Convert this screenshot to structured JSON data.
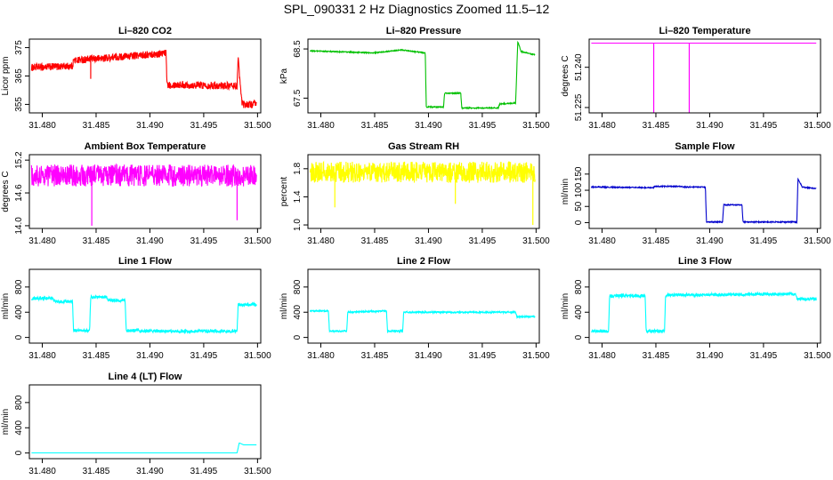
{
  "figure": {
    "title": "SPL_090331  2 Hz Diagnostics Zoomed 11.5–12"
  },
  "chart_data": [
    {
      "type": "line",
      "title": "Li–820 CO2",
      "ylabel": "Licor ppm",
      "color": "#ff0000",
      "xlim": [
        31.4788,
        31.5003
      ],
      "ylim": [
        352,
        378
      ],
      "xticks": [
        "31.480",
        "31.485",
        "31.490",
        "31.495",
        "31.500"
      ],
      "yticks": [
        "355",
        "365",
        "375"
      ],
      "noise": 1.3,
      "x": [
        31.479,
        31.4828,
        31.4829,
        31.4915,
        31.4916,
        31.4981,
        31.4982,
        31.4985,
        31.4986,
        31.4999
      ],
      "y": [
        368,
        368.5,
        370.5,
        373,
        362,
        361.5,
        371,
        357,
        355,
        355
      ],
      "spikes": [
        [
          31.4845,
          364,
          370
        ]
      ]
    },
    {
      "type": "line",
      "title": "Li–820 Pressure",
      "ylabel": "kPa",
      "color": "#00c000",
      "xlim": [
        31.4788,
        31.5003
      ],
      "ylim": [
        67.2,
        68.7
      ],
      "xticks": [
        "31.480",
        "31.485",
        "31.490",
        "31.495",
        "31.500"
      ],
      "yticks": [
        "67.5",
        "68.5"
      ],
      "noise": 0.01,
      "x": [
        31.479,
        31.485,
        31.4875,
        31.4897,
        31.4898,
        31.4914,
        31.4915,
        31.493,
        31.4931,
        31.4965,
        31.4966,
        31.4981,
        31.4983,
        31.4986,
        31.4999
      ],
      "y": [
        68.46,
        68.42,
        68.48,
        68.42,
        67.32,
        67.32,
        67.6,
        67.6,
        67.3,
        67.3,
        67.38,
        67.4,
        68.65,
        68.45,
        68.38
      ],
      "spikes": []
    },
    {
      "type": "line",
      "title": "Li–820 Temperature",
      "ylabel": "degrees C",
      "color": "#ff00ff",
      "xlim": [
        31.4788,
        31.5003
      ],
      "ylim": [
        51.223,
        51.2505
      ],
      "xticks": [
        "31.480",
        "31.485",
        "31.490",
        "31.495",
        "31.500"
      ],
      "yticks": [
        "51.225",
        "51.240"
      ],
      "noise": 0,
      "x": [
        31.479,
        31.4999
      ],
      "y": [
        51.249,
        51.249
      ],
      "spikes": [
        [
          31.4848,
          51.223,
          51.249
        ],
        [
          31.4881,
          51.223,
          51.249
        ]
      ]
    },
    {
      "type": "line",
      "title": "Ambient Box Temperature",
      "ylabel": "degrees C",
      "color": "#ff00ff",
      "xlim": [
        31.4788,
        31.5003
      ],
      "ylim": [
        13.95,
        15.3
      ],
      "xticks": [
        "31.480",
        "31.485",
        "31.490",
        "31.495",
        "31.500"
      ],
      "yticks": [
        "14.0",
        "14.6",
        "15.2"
      ],
      "noise": 0.2,
      "x": [
        31.479,
        31.4999
      ],
      "y": [
        14.92,
        14.92
      ],
      "spikes": [
        [
          31.4846,
          14.0,
          14.9
        ],
        [
          31.4981,
          14.1,
          14.9
        ]
      ]
    },
    {
      "type": "line",
      "title": "Gas Stream RH",
      "ylabel": "percent",
      "color": "#ffff00",
      "xlim": [
        31.4788,
        31.5003
      ],
      "ylim": [
        0.95,
        2.0
      ],
      "xticks": [
        "31.480",
        "31.485",
        "31.490",
        "31.495",
        "31.500"
      ],
      "yticks": [
        "1.0",
        "1.4",
        "1.8"
      ],
      "noise": 0.15,
      "x": [
        31.479,
        31.4999
      ],
      "y": [
        1.75,
        1.75
      ],
      "spikes": [
        [
          31.4813,
          1.25,
          1.75
        ],
        [
          31.4925,
          1.3,
          1.75
        ],
        [
          31.4997,
          1.0,
          1.75
        ]
      ]
    },
    {
      "type": "line",
      "title": "Sample Flow",
      "ylabel": "ml/min",
      "color": "#0000cc",
      "xlim": [
        31.4788,
        31.5003
      ],
      "ylim": [
        -18,
        210
      ],
      "xticks": [
        "31.480",
        "31.485",
        "31.490",
        "31.495",
        "31.500"
      ],
      "yticks": [
        "0",
        "50",
        "100",
        "150"
      ],
      "noise": 1.5,
      "x": [
        31.479,
        31.4848,
        31.4849,
        31.4874,
        31.4875,
        31.4896,
        31.4897,
        31.4912,
        31.4913,
        31.493,
        31.4931,
        31.4981,
        31.4982,
        31.4986,
        31.4999
      ],
      "y": [
        110,
        108,
        112,
        112,
        110,
        110,
        2,
        2,
        55,
        55,
        2,
        2,
        135,
        110,
        105
      ],
      "spikes": []
    },
    {
      "type": "line",
      "title": "Line 1 Flow",
      "ylabel": "ml/min",
      "color": "#00ffff",
      "xlim": [
        31.4788,
        31.5003
      ],
      "ylim": [
        -90,
        1080
      ],
      "xticks": [
        "31.480",
        "31.485",
        "31.490",
        "31.495",
        "31.500"
      ],
      "yticks": [
        "0",
        "400",
        "800"
      ],
      "noise": 25,
      "x": [
        31.479,
        31.481,
        31.4811,
        31.4828,
        31.4829,
        31.4844,
        31.4845,
        31.486,
        31.4861,
        31.4877,
        31.4878,
        31.489,
        31.4891,
        31.4981,
        31.4982,
        31.4999
      ],
      "y": [
        620,
        620,
        570,
        570,
        110,
        110,
        640,
        640,
        590,
        590,
        110,
        110,
        100,
        100,
        520,
        520
      ],
      "spikes": []
    },
    {
      "type": "line",
      "title": "Line 2 Flow",
      "ylabel": "ml/min",
      "color": "#00ffff",
      "xlim": [
        31.4788,
        31.5003
      ],
      "ylim": [
        -90,
        1080
      ],
      "xticks": [
        "31.480",
        "31.485",
        "31.490",
        "31.495",
        "31.500"
      ],
      "yticks": [
        "0",
        "400",
        "800"
      ],
      "noise": 12,
      "x": [
        31.479,
        31.4807,
        31.4808,
        31.4824,
        31.4825,
        31.4861,
        31.4862,
        31.4876,
        31.4877,
        31.4981,
        31.4982,
        31.4999
      ],
      "y": [
        420,
        420,
        100,
        100,
        400,
        420,
        100,
        100,
        400,
        400,
        330,
        330
      ],
      "spikes": []
    },
    {
      "type": "line",
      "title": "Line 3 Flow",
      "ylabel": "ml/min",
      "color": "#00ffff",
      "xlim": [
        31.4788,
        31.5003
      ],
      "ylim": [
        -90,
        1080
      ],
      "xticks": [
        "31.480",
        "31.485",
        "31.490",
        "31.495",
        "31.500"
      ],
      "yticks": [
        "0",
        "400",
        "800"
      ],
      "noise": 25,
      "x": [
        31.479,
        31.4806,
        31.4807,
        31.484,
        31.4841,
        31.4858,
        31.4859,
        31.498,
        31.4981,
        31.4999
      ],
      "y": [
        100,
        100,
        660,
        660,
        100,
        100,
        670,
        690,
        610,
        610
      ],
      "spikes": []
    },
    {
      "type": "line",
      "title": "Line 4 (LT) Flow",
      "ylabel": "ml/min",
      "color": "#00ffff",
      "xlim": [
        31.4788,
        31.5003
      ],
      "ylim": [
        -90,
        1080
      ],
      "xticks": [
        "31.480",
        "31.485",
        "31.490",
        "31.495",
        "31.500"
      ],
      "yticks": [
        "0",
        "400",
        "800"
      ],
      "noise": 0,
      "x": [
        31.479,
        31.4981,
        31.4983,
        31.4987,
        31.4999
      ],
      "y": [
        2,
        2,
        160,
        130,
        130
      ],
      "spikes": []
    }
  ]
}
